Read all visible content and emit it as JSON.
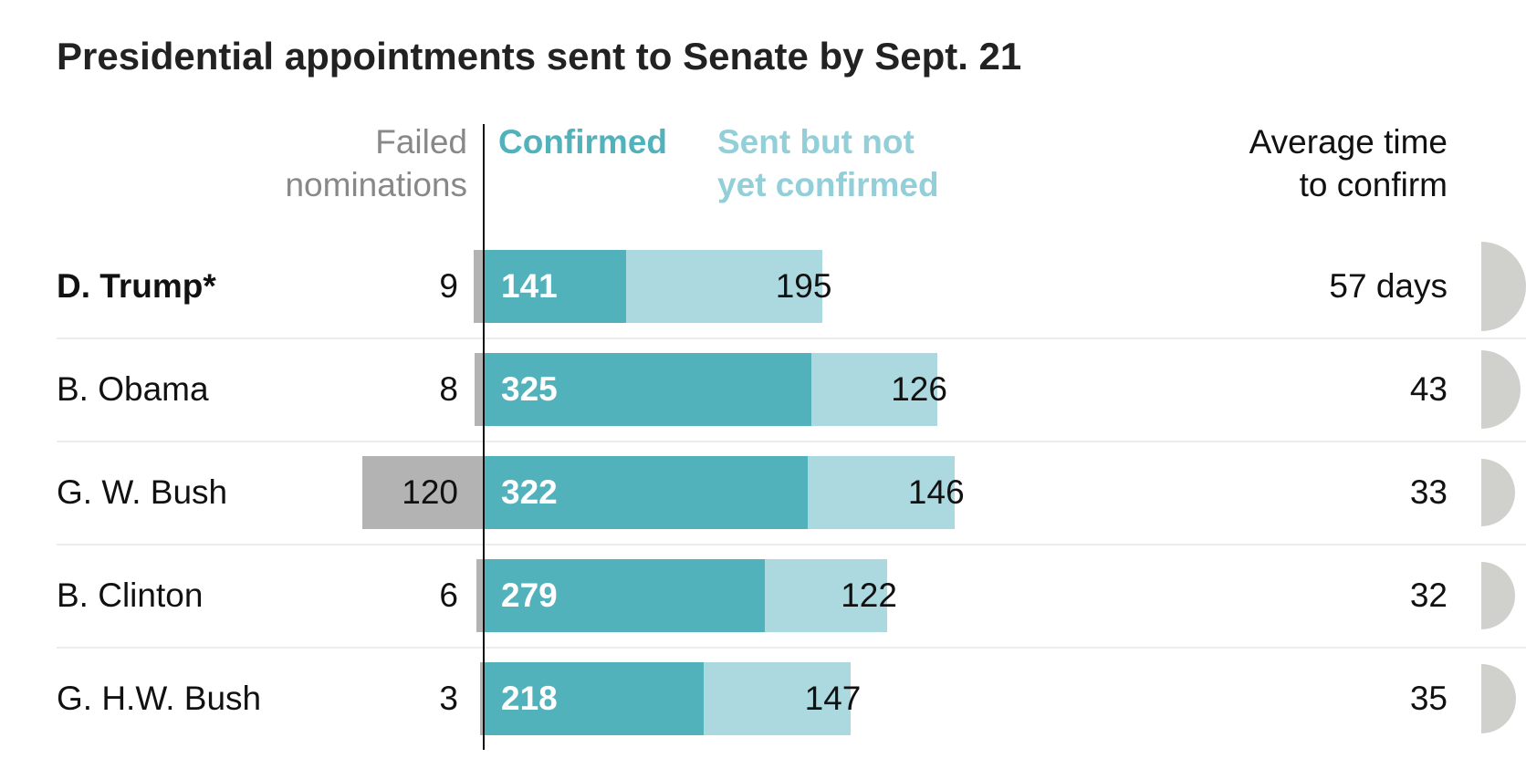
{
  "chart_data": {
    "type": "bar",
    "title": "Presidential appointments sent to Senate by Sept. 21",
    "headers": {
      "failed": [
        "Failed",
        "nominations"
      ],
      "confirmed": "Confirmed",
      "pending": [
        "Sent but not",
        "yet confirmed"
      ],
      "avg": [
        "Average time",
        "to confirm"
      ]
    },
    "categories": [
      "D. Trump*",
      "B. Obama",
      "G. W. Bush",
      "B. Clinton",
      "G. H.W. Bush"
    ],
    "series": [
      {
        "name": "Failed nominations",
        "values": [
          9,
          8,
          120,
          6,
          3
        ]
      },
      {
        "name": "Confirmed",
        "values": [
          141,
          325,
          322,
          279,
          218
        ]
      },
      {
        "name": "Sent but not yet confirmed",
        "values": [
          195,
          126,
          146,
          122,
          147
        ]
      }
    ],
    "avg_days": [
      57,
      43,
      33,
      32,
      35
    ],
    "avg_labels": [
      "57 days",
      "43",
      "33",
      "32",
      "35"
    ],
    "highlight_row": 0,
    "colors": {
      "failed": "#b3b3b3",
      "confirmed": "#52b2bc",
      "pending": "#acd9df",
      "avg": "#d0d0cd"
    }
  }
}
